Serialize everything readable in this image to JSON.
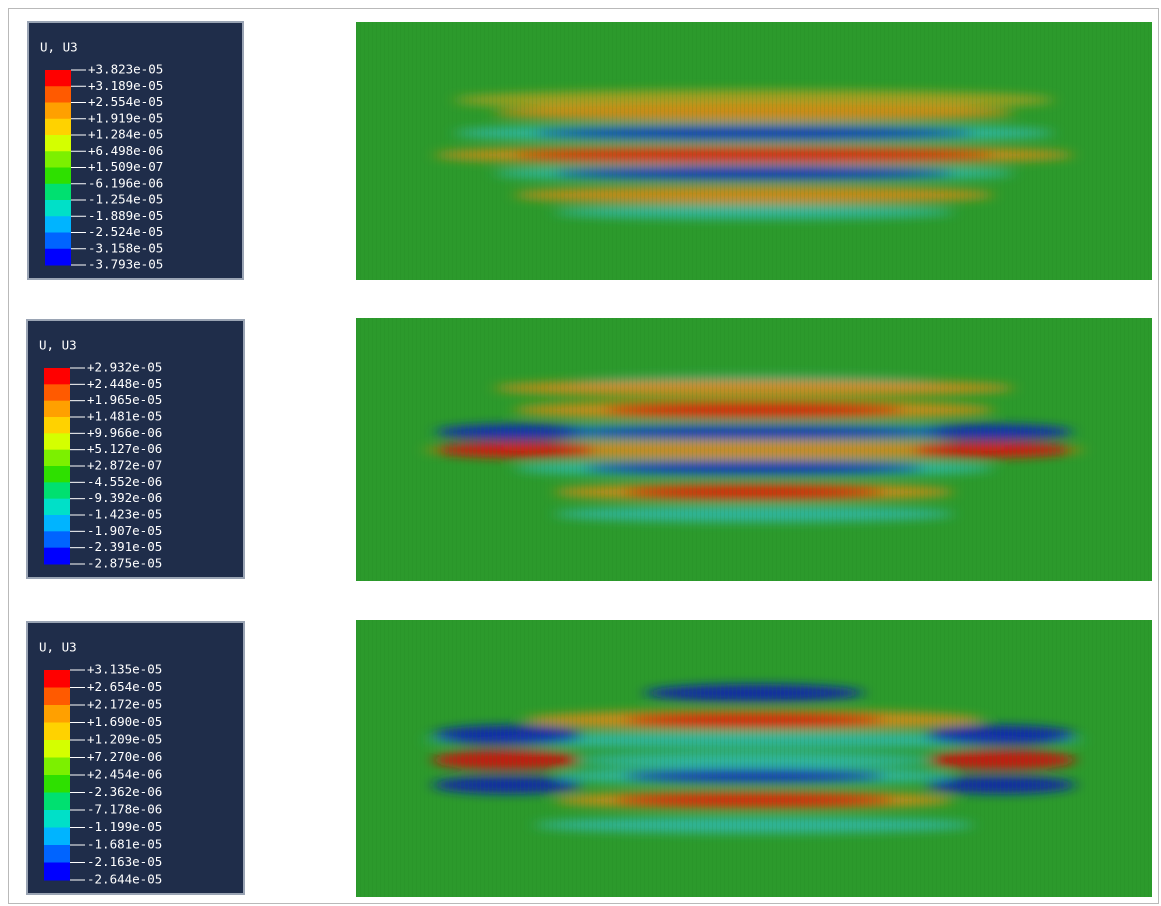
{
  "panels": [
    {
      "legend": {
        "title": "U, U3",
        "labels": [
          "+3.823e-05",
          "+3.189e-05",
          "+2.554e-05",
          "+1.919e-05",
          "+1.284e-05",
          "+6.498e-06",
          "+1.509e-07",
          "-6.196e-06",
          "-1.254e-05",
          "-1.889e-05",
          "-2.524e-05",
          "-3.158e-05",
          "-3.793e-05"
        ]
      }
    },
    {
      "legend": {
        "title": "U, U3",
        "labels": [
          "+2.932e-05",
          "+2.448e-05",
          "+1.965e-05",
          "+1.481e-05",
          "+9.966e-06",
          "+5.127e-06",
          "+2.872e-07",
          "-4.552e-06",
          "-9.392e-06",
          "-1.423e-05",
          "-1.907e-05",
          "-2.391e-05",
          "-2.875e-05"
        ]
      }
    },
    {
      "legend": {
        "title": "U, U3",
        "labels": [
          "+3.135e-05",
          "+2.654e-05",
          "+2.172e-05",
          "+1.690e-05",
          "+1.209e-05",
          "+7.270e-06",
          "+2.454e-06",
          "-2.362e-06",
          "-7.178e-06",
          "-1.199e-05",
          "-1.681e-05",
          "-2.163e-05",
          "-2.644e-05"
        ]
      }
    }
  ]
}
